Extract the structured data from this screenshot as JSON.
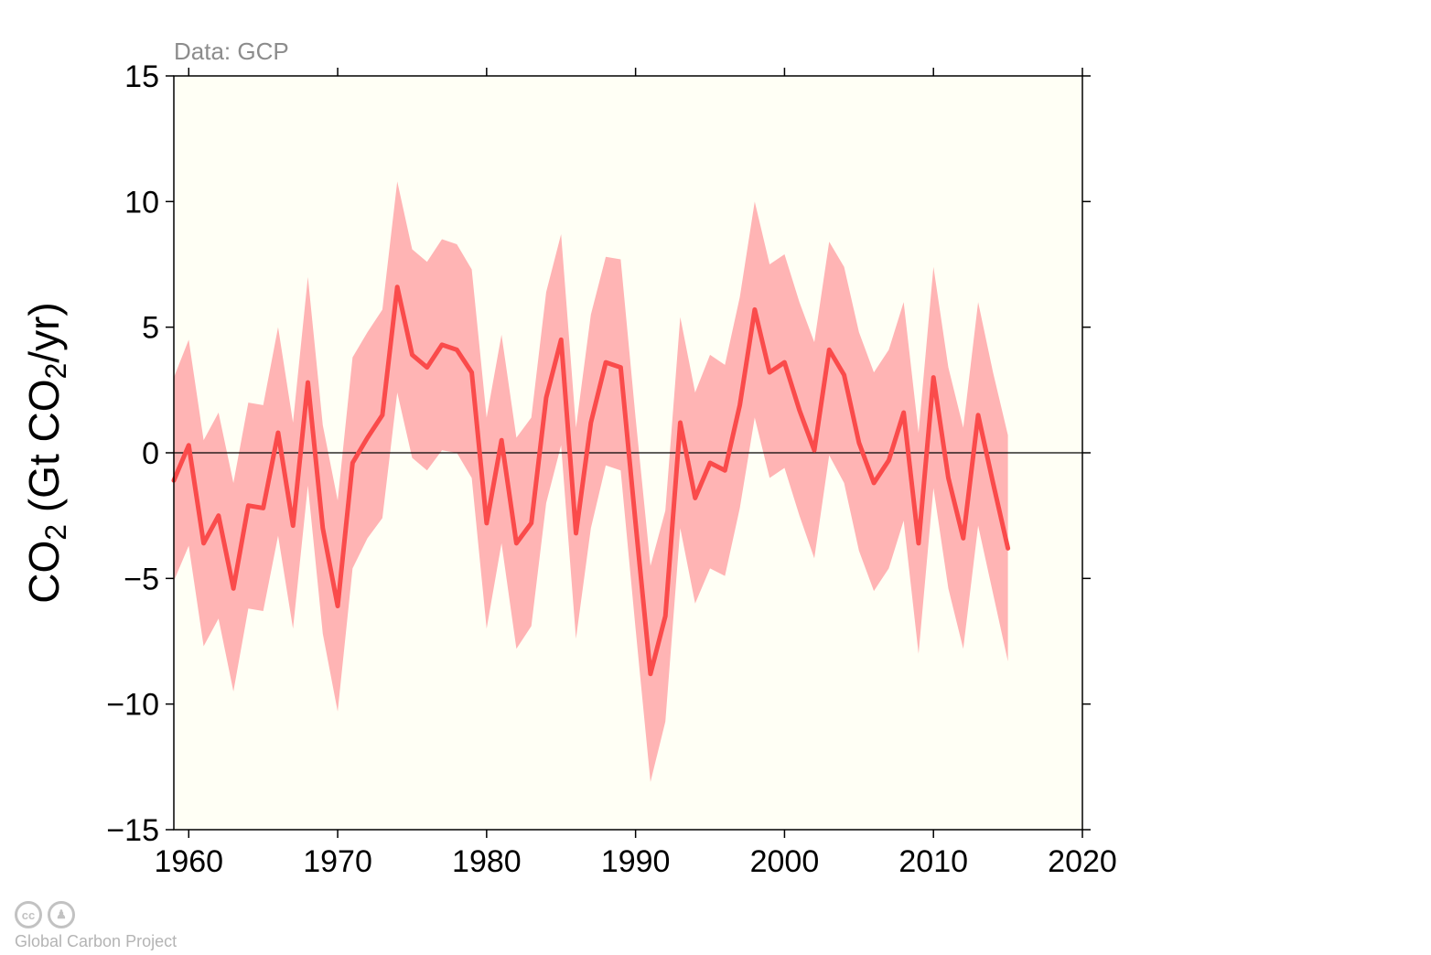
{
  "source_label": "Data: GCP",
  "credit": "Global Carbon Project",
  "license_icons": [
    "cc",
    "by"
  ],
  "colors": {
    "background": "#fffff5",
    "line": "#fa4b4b",
    "band": "#ffb4b4",
    "zero_line": "#000000"
  },
  "chart_data": {
    "type": "area",
    "title": "",
    "ylabel_parts": [
      "CO",
      "2",
      " (Gt CO",
      "2",
      "/yr)"
    ],
    "xlim": [
      1959,
      2020
    ],
    "ylim": [
      -15,
      15
    ],
    "xticks": [
      1960,
      1970,
      1980,
      1990,
      2000,
      2010,
      2020
    ],
    "yticks": [
      15,
      10,
      5,
      0,
      -5,
      -10,
      -15
    ],
    "ytick_labels": [
      "15",
      "10",
      "5",
      "0",
      "−5",
      "−10",
      "−15"
    ],
    "grid": false,
    "zero_line": true,
    "x": [
      1959,
      1960,
      1961,
      1962,
      1963,
      1964,
      1965,
      1966,
      1967,
      1968,
      1969,
      1970,
      1971,
      1972,
      1973,
      1974,
      1975,
      1976,
      1977,
      1978,
      1979,
      1980,
      1981,
      1982,
      1983,
      1984,
      1985,
      1986,
      1987,
      1988,
      1989,
      1990,
      1991,
      1992,
      1993,
      1994,
      1995,
      1996,
      1997,
      1998,
      1999,
      2000,
      2001,
      2002,
      2003,
      2004,
      2005,
      2006,
      2007,
      2008,
      2009,
      2010,
      2011,
      2012,
      2013,
      2014,
      2015
    ],
    "series": [
      {
        "values": [
          -1.1,
          0.3,
          -3.6,
          -2.5,
          -5.4,
          -2.1,
          -2.2,
          0.8,
          -2.9,
          2.8,
          -3.0,
          -6.1,
          -0.4,
          0.6,
          1.5,
          6.6,
          3.9,
          3.4,
          4.3,
          4.1,
          3.2,
          -2.8,
          0.5,
          -3.6,
          -2.8,
          2.2,
          4.5,
          -3.2,
          1.2,
          3.6,
          3.4,
          -2.8,
          -8.8,
          -6.5,
          1.2,
          -1.8,
          -0.4,
          -0.7,
          1.9,
          5.7,
          3.2,
          3.6,
          1.7,
          0.1,
          4.1,
          3.1,
          0.4,
          -1.2,
          -0.3,
          1.6,
          -3.6,
          3.0,
          -1.0,
          -3.4,
          1.5,
          -1.2,
          -3.8
        ],
        "lower": [
          -5.1,
          -3.7,
          -7.7,
          -6.6,
          -9.5,
          -6.2,
          -6.3,
          -3.3,
          -7.0,
          -1.3,
          -7.2,
          -10.3,
          -4.6,
          -3.4,
          -2.6,
          2.4,
          -0.2,
          -0.7,
          0.1,
          0.0,
          -1.0,
          -7.0,
          -3.6,
          -7.8,
          -6.9,
          -2.0,
          0.3,
          -7.4,
          -3.0,
          -0.5,
          -0.7,
          -7.0,
          -13.1,
          -10.7,
          -3.0,
          -6.0,
          -4.6,
          -4.9,
          -2.2,
          1.4,
          -1.0,
          -0.6,
          -2.5,
          -4.2,
          -0.1,
          -1.2,
          -3.9,
          -5.5,
          -4.6,
          -2.7,
          -8.0,
          -1.4,
          -5.4,
          -7.8,
          -2.9,
          -5.6,
          -8.3
        ],
        "upper": [
          3.0,
          4.5,
          0.5,
          1.6,
          -1.2,
          2.0,
          1.9,
          5.0,
          1.2,
          7.0,
          1.1,
          -1.9,
          3.8,
          4.8,
          5.7,
          10.8,
          8.1,
          7.6,
          8.5,
          8.3,
          7.3,
          1.4,
          4.7,
          0.6,
          1.4,
          6.4,
          8.7,
          1.0,
          5.5,
          7.8,
          7.7,
          1.4,
          -4.5,
          -2.3,
          5.4,
          2.4,
          3.9,
          3.5,
          6.2,
          10.0,
          7.5,
          7.9,
          6.0,
          4.4,
          8.4,
          7.4,
          4.8,
          3.2,
          4.1,
          6.0,
          0.8,
          7.4,
          3.4,
          1.0,
          6.0,
          3.2,
          0.7
        ]
      }
    ]
  }
}
